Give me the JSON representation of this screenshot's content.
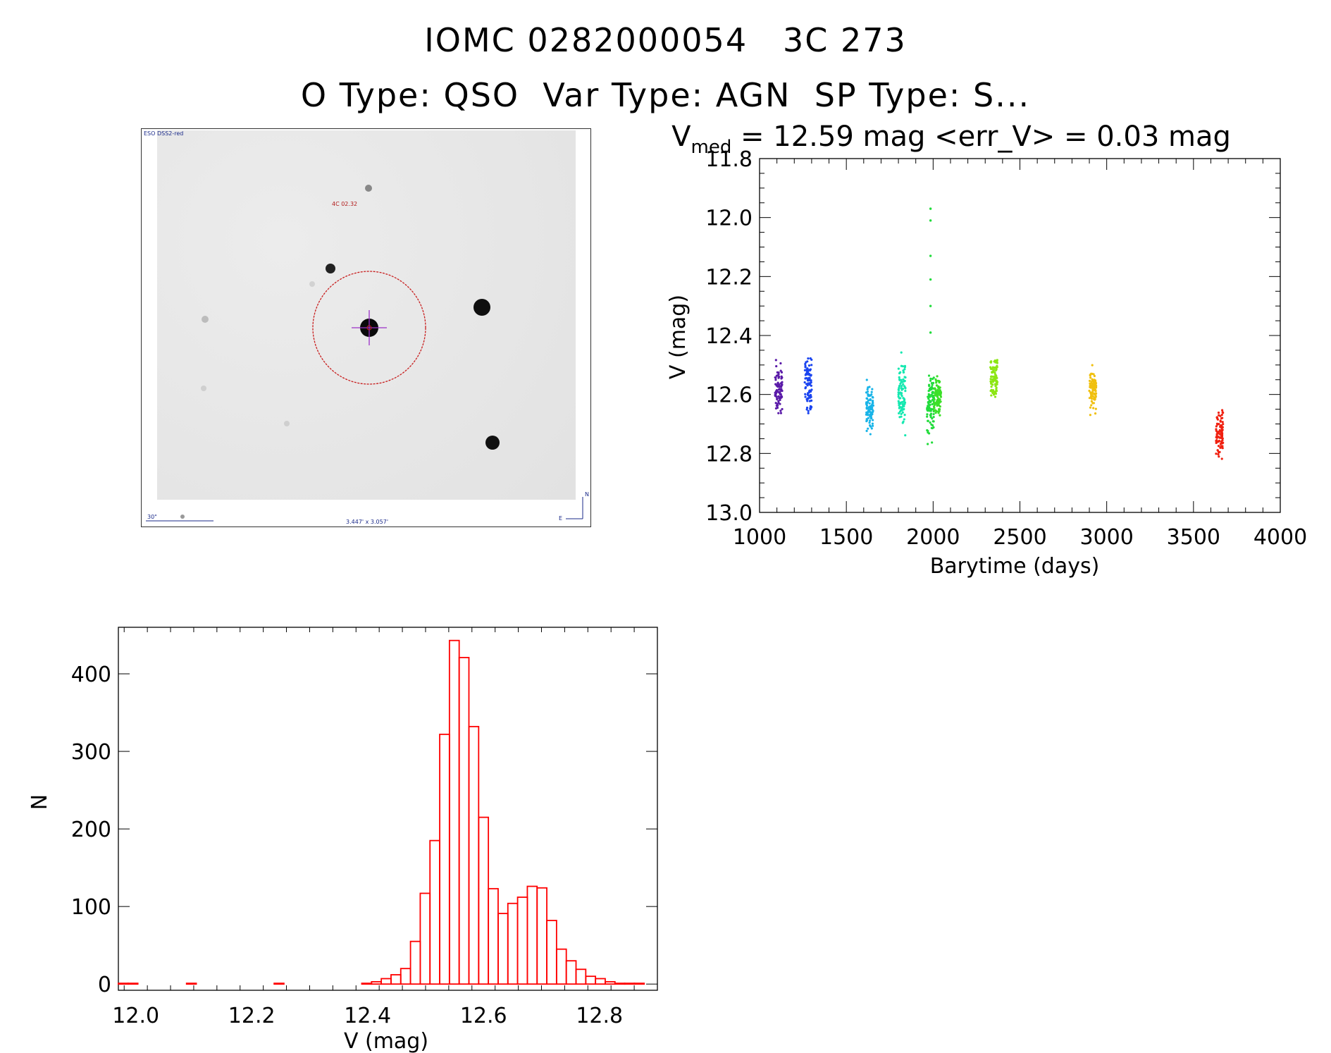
{
  "header": {
    "title": "IOMC 0282000054   3C 273",
    "subtitle": "O Type: QSO  Var Type: AGN  SP Type: S..."
  },
  "finder": {
    "survey_label": "ESO DSS2-red",
    "object_label": "4C 02.32",
    "scale_label": "30\"",
    "fov_label": "3.447' x 3.057'",
    "north_label": "N",
    "east_label": "E"
  },
  "colors": {
    "histogram": "#ff0000",
    "circle": "#c81e1e",
    "crosshair": "#9b30c8"
  },
  "chart_data": [
    {
      "type": "scatter",
      "title_prefix": "V",
      "title_subscript": "med",
      "title_rest": " = 12.59 mag <err_V> = 0.03 mag",
      "xlabel": "Barytime (days)",
      "ylabel": "V (mag)",
      "xlim": [
        1000,
        4000
      ],
      "ylim": [
        13.0,
        11.8
      ],
      "y_inverted": true,
      "x_ticks": [
        "1000",
        "1500",
        "2000",
        "2500",
        "3000",
        "3500",
        "4000"
      ],
      "y_ticks": [
        "11.8",
        "12.0",
        "12.2",
        "12.4",
        "12.6",
        "12.8",
        "13.0"
      ],
      "groups": [
        {
          "x": 1110,
          "ymin": 12.44,
          "ymax": 12.68,
          "ycenter": 12.58,
          "color": "#5a1aa8"
        },
        {
          "x": 1280,
          "ymin": 12.43,
          "ymax": 12.69,
          "ycenter": 12.57,
          "color": "#1a44f0"
        },
        {
          "x": 1635,
          "ymin": 12.55,
          "ymax": 12.75,
          "ycenter": 12.65,
          "color": "#18b4e8"
        },
        {
          "x": 1820,
          "ymin": 12.45,
          "ymax": 12.78,
          "ycenter": 12.6,
          "color": "#14e8b0"
        },
        {
          "x": 1985,
          "ymin": 12.53,
          "ymax": 12.82,
          "ycenter": 12.64,
          "color": "#22dc3c"
        },
        {
          "x": 2025,
          "ymin": 12.53,
          "ymax": 12.7,
          "ycenter": 12.61,
          "color": "#3ce028"
        },
        {
          "x": 2350,
          "ymin": 12.45,
          "ymax": 12.64,
          "ycenter": 12.54,
          "color": "#8ce614"
        },
        {
          "x": 2920,
          "ymin": 12.48,
          "ymax": 12.68,
          "ycenter": 12.58,
          "color": "#f0c010"
        },
        {
          "x": 3650,
          "ymin": 12.62,
          "ymax": 12.87,
          "ycenter": 12.74,
          "color": "#f02010"
        }
      ],
      "outliers": [
        {
          "x": 1985,
          "y": 11.97
        },
        {
          "x": 1985,
          "y": 12.01
        },
        {
          "x": 1985,
          "y": 12.13
        },
        {
          "x": 1985,
          "y": 12.21
        },
        {
          "x": 1985,
          "y": 12.3
        },
        {
          "x": 1985,
          "y": 12.39
        }
      ]
    },
    {
      "type": "bar",
      "subtype": "histogram",
      "xlabel": "V (mag)",
      "ylabel": "N",
      "xlim": [
        11.97,
        12.9
      ],
      "ylim": [
        -8,
        460
      ],
      "x_ticks": [
        "12.0",
        "12.2",
        "12.4",
        "12.6",
        "12.8"
      ],
      "y_ticks": [
        "0",
        "100",
        "200",
        "300",
        "400"
      ],
      "bin_start": 11.97,
      "bin_width": 0.0168,
      "values": [
        1,
        1,
        0,
        0,
        0,
        0,
        0,
        1,
        0,
        0,
        0,
        0,
        0,
        0,
        0,
        0,
        1,
        0,
        0,
        0,
        0,
        0,
        0,
        0,
        0,
        1,
        3,
        7,
        12,
        20,
        55,
        117,
        185,
        322,
        443,
        421,
        332,
        215,
        123,
        91,
        104,
        112,
        126,
        124,
        82,
        45,
        30,
        19,
        10,
        7,
        3,
        1,
        1,
        1
      ]
    }
  ]
}
